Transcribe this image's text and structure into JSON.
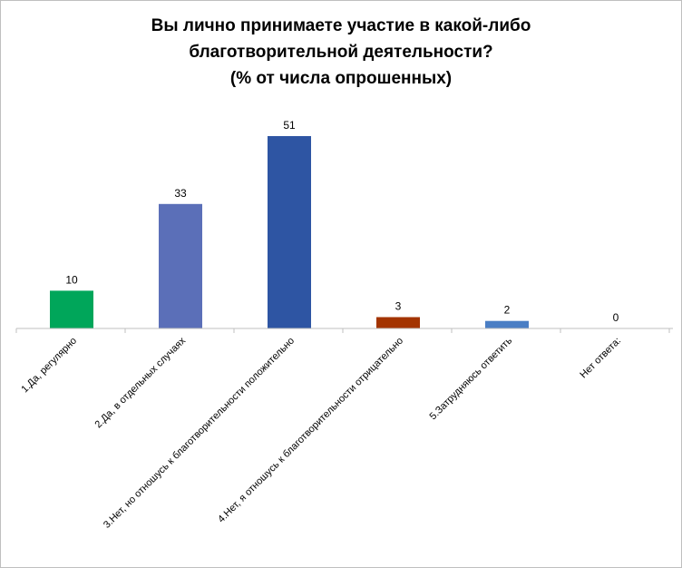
{
  "chart_data": {
    "type": "bar",
    "title_lines": [
      "Вы лично принимаете участие в какой-либо",
      "благотворительной деятельности?",
      "(% от числа опрошенных)"
    ],
    "categories": [
      "1.Да, регулярно",
      "2.Да, в отдельных случаях",
      "3.Нет, но отношусь к благотворительности положительно",
      "4.Нет, я отношусь к благотворительности отрицательно",
      "5.Затрудняюсь ответить",
      "Нет ответа:"
    ],
    "values": [
      10,
      33,
      51,
      3,
      2,
      0
    ],
    "value_labels": [
      "10",
      "33",
      "51",
      "3",
      "2",
      "0"
    ],
    "bar_colors": [
      "#00a65a",
      "#5b6fb8",
      "#2e55a3",
      "#a33400",
      "#4a7ec4",
      "#4a7ec4"
    ],
    "ylim": [
      0,
      55
    ],
    "grid": false,
    "legend": "none"
  }
}
